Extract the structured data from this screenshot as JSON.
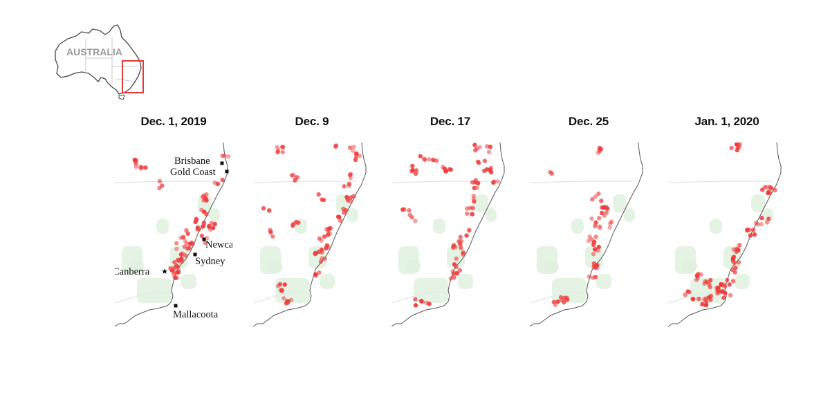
{
  "locator": {
    "label": "AUSTRALIA",
    "highlight_color": "#e23b3b",
    "outline_color": "#444444"
  },
  "colors": {
    "fire": "#ee3b3b",
    "land_shading": "#dff0df",
    "coast": "#555555",
    "border": "#dddddd"
  },
  "cities": [
    {
      "name": "Brisbane",
      "marker": "square"
    },
    {
      "name": "Gold Coast",
      "marker": "square"
    },
    {
      "name": "Newcastle",
      "marker": "square"
    },
    {
      "name": "Sydney",
      "marker": "square"
    },
    {
      "name": "Canberra",
      "marker": "star"
    },
    {
      "name": "Mallacoota",
      "marker": "square"
    }
  ],
  "panels": [
    {
      "title": "Dec. 1, 2019"
    },
    {
      "title": "Dec. 9"
    },
    {
      "title": "Dec. 17"
    },
    {
      "title": "Dec. 25"
    },
    {
      "title": "Jan. 1, 2020"
    }
  ]
}
